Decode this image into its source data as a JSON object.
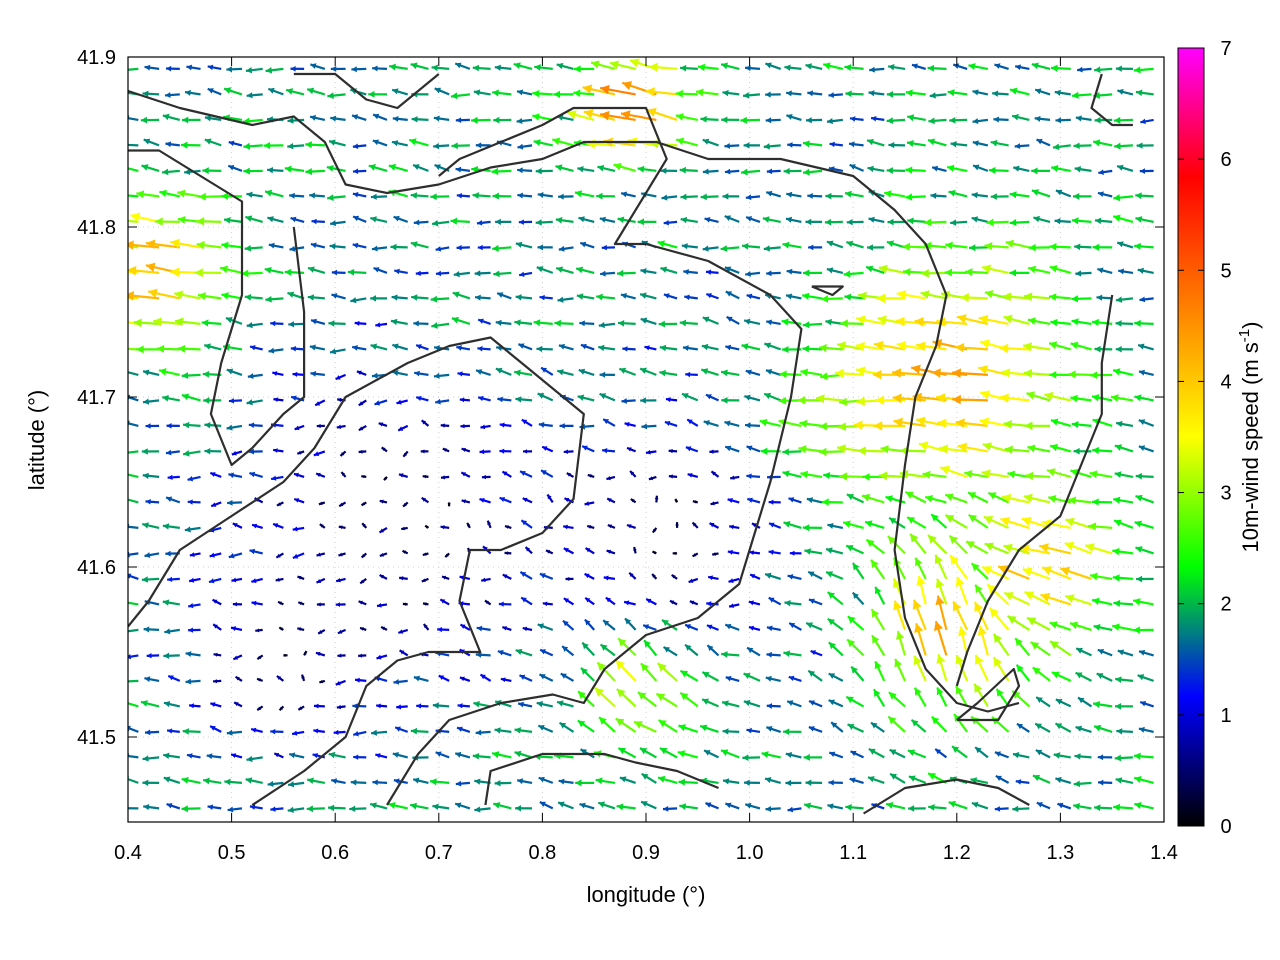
{
  "chart_data": {
    "type": "vector-field",
    "title": "",
    "xlabel": "longitude (°)",
    "ylabel": "latitude (°)",
    "xlim": [
      0.4,
      1.4
    ],
    "ylim": [
      41.45,
      41.9
    ],
    "xticks": [
      "0.4",
      "0.5",
      "0.6",
      "0.7",
      "0.8",
      "0.9",
      "1.0",
      "1.1",
      "1.2",
      "1.3",
      "1.4"
    ],
    "yticks": [
      "41.5",
      "41.6",
      "41.7",
      "41.8",
      "41.9"
    ],
    "grid": true,
    "colorbar": {
      "label_main": "10m-wind speed (m s",
      "label_sup": "-1",
      "label_close": ")",
      "range": [
        0,
        7
      ],
      "ticks": [
        "0",
        "1",
        "2",
        "3",
        "4",
        "5",
        "6",
        "7"
      ],
      "colormap": [
        "#000000",
        "#0000ff",
        "#00ff00",
        "#ffff00",
        "#ff8000",
        "#ff0000",
        "#ff00ff"
      ]
    },
    "contours": [
      [
        [
          0.4,
          41.88
        ],
        [
          0.45,
          41.87
        ],
        [
          0.52,
          41.86
        ],
        [
          0.56,
          41.865
        ],
        [
          0.59,
          41.85
        ],
        [
          0.61,
          41.825
        ],
        [
          0.65,
          41.82
        ],
        [
          0.7,
          41.825
        ],
        [
          0.75,
          41.835
        ],
        [
          0.8,
          41.84
        ],
        [
          0.84,
          41.85
        ],
        [
          0.88,
          41.85
        ],
        [
          0.91,
          41.85
        ],
        [
          0.96,
          41.84
        ],
        [
          1.03,
          41.84
        ],
        [
          1.1,
          41.83
        ],
        [
          1.14,
          41.81
        ],
        [
          1.17,
          41.79
        ],
        [
          1.19,
          41.76
        ],
        [
          1.18,
          41.73
        ],
        [
          1.16,
          41.7
        ],
        [
          1.15,
          41.66
        ],
        [
          1.14,
          41.61
        ],
        [
          1.15,
          41.57
        ],
        [
          1.17,
          41.54
        ],
        [
          1.2,
          41.52
        ],
        [
          1.23,
          41.515
        ],
        [
          1.26,
          41.52
        ]
      ],
      [
        [
          0.4,
          41.845
        ],
        [
          0.43,
          41.845
        ],
        [
          0.47,
          41.83
        ],
        [
          0.51,
          41.815
        ],
        [
          0.51,
          41.76
        ],
        [
          0.49,
          41.72
        ],
        [
          0.48,
          41.69
        ],
        [
          0.5,
          41.66
        ],
        [
          0.52,
          41.67
        ],
        [
          0.55,
          41.69
        ],
        [
          0.57,
          41.7
        ],
        [
          0.57,
          41.75
        ],
        [
          0.56,
          41.8
        ]
      ],
      [
        [
          0.4,
          41.565
        ],
        [
          0.42,
          41.58
        ],
        [
          0.45,
          41.61
        ],
        [
          0.5,
          41.63
        ],
        [
          0.55,
          41.65
        ],
        [
          0.58,
          41.67
        ],
        [
          0.61,
          41.7
        ],
        [
          0.64,
          41.71
        ],
        [
          0.67,
          41.72
        ],
        [
          0.71,
          41.73
        ],
        [
          0.75,
          41.735
        ],
        [
          0.78,
          41.72
        ],
        [
          0.82,
          41.7
        ],
        [
          0.84,
          41.69
        ],
        [
          0.83,
          41.64
        ],
        [
          0.8,
          41.62
        ],
        [
          0.76,
          41.61
        ],
        [
          0.73,
          41.61
        ],
        [
          0.72,
          41.58
        ],
        [
          0.74,
          41.55
        ],
        [
          0.69,
          41.55
        ],
        [
          0.66,
          41.545
        ],
        [
          0.63,
          41.53
        ],
        [
          0.61,
          41.5
        ],
        [
          0.57,
          41.48
        ],
        [
          0.52,
          41.46
        ]
      ],
      [
        [
          0.65,
          41.46
        ],
        [
          0.68,
          41.49
        ],
        [
          0.71,
          41.51
        ],
        [
          0.76,
          41.52
        ],
        [
          0.81,
          41.525
        ],
        [
          0.84,
          41.52
        ],
        [
          0.86,
          41.54
        ],
        [
          0.9,
          41.56
        ],
        [
          0.95,
          41.57
        ],
        [
          0.99,
          41.59
        ],
        [
          1.02,
          41.65
        ],
        [
          1.04,
          41.7
        ],
        [
          1.05,
          41.74
        ],
        [
          1.02,
          41.76
        ],
        [
          0.96,
          41.78
        ],
        [
          0.9,
          41.79
        ],
        [
          0.87,
          41.79
        ],
        [
          0.9,
          41.82
        ],
        [
          0.92,
          41.84
        ],
        [
          0.9,
          41.87
        ],
        [
          0.86,
          41.87
        ],
        [
          0.83,
          41.87
        ],
        [
          0.8,
          41.86
        ],
        [
          0.76,
          41.85
        ],
        [
          0.72,
          41.84
        ],
        [
          0.7,
          41.83
        ]
      ],
      [
        [
          0.745,
          41.46
        ],
        [
          0.75,
          41.48
        ],
        [
          0.8,
          41.49
        ],
        [
          0.86,
          41.49
        ],
        [
          0.89,
          41.485
        ],
        [
          0.93,
          41.48
        ],
        [
          0.97,
          41.47
        ]
      ],
      [
        [
          1.11,
          41.455
        ],
        [
          1.15,
          41.47
        ],
        [
          1.2,
          41.475
        ],
        [
          1.24,
          41.47
        ],
        [
          1.27,
          41.46
        ]
      ],
      [
        [
          1.34,
          41.89
        ],
        [
          1.33,
          41.87
        ],
        [
          1.35,
          41.86
        ],
        [
          1.37,
          41.86
        ]
      ],
      [
        [
          1.35,
          41.76
        ],
        [
          1.34,
          41.72
        ],
        [
          1.34,
          41.69
        ],
        [
          1.32,
          41.66
        ],
        [
          1.3,
          41.63
        ],
        [
          1.26,
          41.61
        ],
        [
          1.23,
          41.58
        ],
        [
          1.21,
          41.55
        ],
        [
          1.2,
          41.53
        ]
      ],
      [
        [
          0.56,
          41.89
        ],
        [
          0.6,
          41.89
        ],
        [
          0.63,
          41.875
        ],
        [
          0.66,
          41.87
        ],
        [
          0.68,
          41.88
        ],
        [
          0.7,
          41.89
        ]
      ],
      [
        [
          1.06,
          41.765
        ],
        [
          1.08,
          41.76
        ],
        [
          1.09,
          41.765
        ],
        [
          1.07,
          41.765
        ],
        [
          1.06,
          41.765
        ]
      ],
      [
        [
          1.2,
          41.51
        ],
        [
          1.24,
          41.51
        ],
        [
          1.26,
          41.53
        ],
        [
          1.255,
          41.54
        ],
        [
          1.22,
          41.52
        ],
        [
          1.2,
          41.51
        ]
      ]
    ],
    "wind_field": {
      "grid_step_lon": 0.02,
      "grid_step_lat": 0.015,
      "background": {
        "u": -1.8,
        "v": 0.2
      },
      "vortices": [
        {
          "lon": 0.7,
          "lat": 41.64,
          "strength": 2.0,
          "radius": 0.12
        },
        {
          "lon": 1.05,
          "lat": 41.7,
          "strength": -1.5,
          "radius": 0.1
        }
      ],
      "calm_zones": [
        {
          "lon": 0.66,
          "lat": 41.64,
          "radius": 0.15
        },
        {
          "lon": 0.92,
          "lat": 41.62,
          "radius": 0.11
        },
        {
          "lon": 0.56,
          "lat": 41.54,
          "radius": 0.08
        }
      ],
      "jets": [
        {
          "lon": 1.2,
          "lat": 41.71,
          "radius": 0.12,
          "u": -4.2,
          "v": 0.6
        },
        {
          "lon": 0.44,
          "lat": 41.77,
          "radius": 0.07,
          "u": -4.2,
          "v": 0.5
        },
        {
          "lon": 0.9,
          "lat": 41.87,
          "radius": 0.05,
          "u": -4.8,
          "v": 1.2
        },
        {
          "lon": 1.2,
          "lat": 41.56,
          "radius": 0.1,
          "u": -1.0,
          "v": 4.0
        },
        {
          "lon": 0.9,
          "lat": 41.53,
          "radius": 0.07,
          "u": -2.5,
          "v": 2.5
        },
        {
          "lon": 1.3,
          "lat": 41.6,
          "radius": 0.07,
          "u": -3.8,
          "v": 1.0
        }
      ]
    }
  }
}
